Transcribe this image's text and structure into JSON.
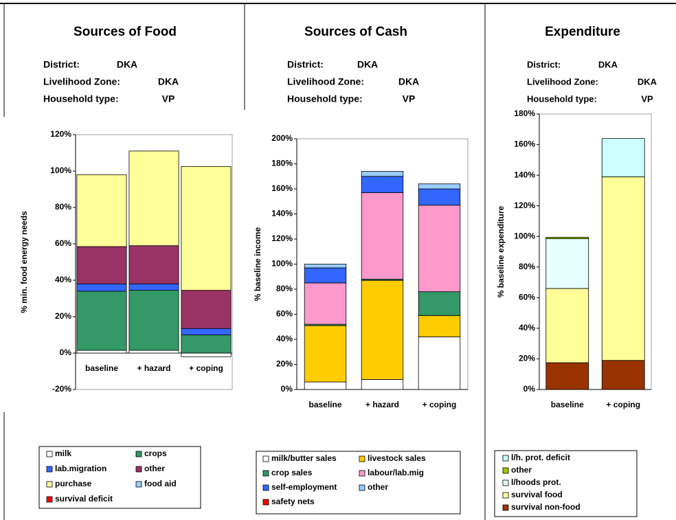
{
  "chart_data": [
    {
      "type": "bar",
      "title": "Sources of Food",
      "info": [
        {
          "label": "District:",
          "value": "DKA"
        },
        {
          "label": "Livelihood Zone:",
          "value": "DKA"
        },
        {
          "label": "Household type:",
          "value": "VP"
        }
      ],
      "y_label": "% min. food energy needs",
      "categories": [
        "baseline",
        "+ hazard",
        "+ coping"
      ],
      "ylim": [
        -20,
        120
      ],
      "yticks": [
        {
          "value": -20,
          "label": "-20%"
        },
        {
          "value": 0,
          "label": "0%"
        },
        {
          "value": 20,
          "label": "20%"
        },
        {
          "value": 40,
          "label": "40%"
        },
        {
          "value": 60,
          "label": "60%"
        },
        {
          "value": 80,
          "label": "80%"
        },
        {
          "value": 100,
          "label": "100%"
        },
        {
          "value": 120,
          "label": "120%"
        }
      ],
      "series": [
        {
          "name": "milk",
          "color": "#ffffff",
          "values": [
            1.5,
            1.5,
            -2
          ]
        },
        {
          "name": "crops",
          "color": "#339966",
          "values": [
            32.5,
            33,
            10
          ]
        },
        {
          "name": "lab.migration",
          "color": "#3366ff",
          "values": [
            4,
            3.5,
            3.5
          ]
        },
        {
          "name": "other",
          "color": "#993366",
          "values": [
            20.5,
            21,
            21
          ]
        },
        {
          "name": "purchase",
          "color": "#ffff99",
          "values": [
            39.5,
            52,
            68
          ]
        },
        {
          "name": "food aid",
          "color": "#99ccff",
          "values": [
            0,
            0,
            0
          ]
        },
        {
          "name": "survival deficit",
          "color": "#ff0000",
          "values": [
            0,
            0,
            0
          ]
        }
      ]
    },
    {
      "type": "bar",
      "title": "Sources of Cash",
      "info": [
        {
          "label": "District:",
          "value": "DKA"
        },
        {
          "label": "Livelihood Zone:",
          "value": "DKA"
        },
        {
          "label": "Household type:",
          "value": "VP"
        }
      ],
      "y_label": "% baseline income",
      "categories": [
        "baseline",
        "+ hazard",
        "+ coping"
      ],
      "ylim": [
        0,
        200
      ],
      "yticks": [
        {
          "value": 0,
          "label": "0%"
        },
        {
          "value": 20,
          "label": "20%"
        },
        {
          "value": 40,
          "label": "40%"
        },
        {
          "value": 60,
          "label": "60%"
        },
        {
          "value": 80,
          "label": "80%"
        },
        {
          "value": 100,
          "label": "100%"
        },
        {
          "value": 120,
          "label": "120%"
        },
        {
          "value": 140,
          "label": "140%"
        },
        {
          "value": 160,
          "label": "160%"
        },
        {
          "value": 180,
          "label": "180%"
        },
        {
          "value": 200,
          "label": "200%"
        }
      ],
      "series": [
        {
          "name": "milk/butter sales",
          "color": "#ffffff",
          "values": [
            6,
            8,
            42
          ]
        },
        {
          "name": "livestock sales",
          "color": "#ffcc00",
          "values": [
            45,
            79,
            17
          ]
        },
        {
          "name": "crop sales",
          "color": "#339966",
          "values": [
            1,
            1,
            19
          ]
        },
        {
          "name": "labour/lab.mig",
          "color": "#ff99cc",
          "values": [
            33,
            69,
            69
          ]
        },
        {
          "name": "self-employment",
          "color": "#3366ff",
          "values": [
            12,
            13,
            13
          ]
        },
        {
          "name": "other",
          "color": "#99ccff",
          "values": [
            3,
            4,
            4
          ]
        },
        {
          "name": "safety nets",
          "color": "#ff0000",
          "values": [
            0,
            0,
            0
          ]
        }
      ]
    },
    {
      "type": "bar",
      "title": "Expenditure",
      "info": [
        {
          "label": "District:",
          "value": "DKA"
        },
        {
          "label": "Livelihood Zone:",
          "value": "DKA"
        },
        {
          "label": "Household type:",
          "value": "VP"
        }
      ],
      "y_label": "% baseline expenditure",
      "categories": [
        "baseline",
        "+ coping"
      ],
      "ylim": [
        0,
        180
      ],
      "yticks": [
        {
          "value": 0,
          "label": "0%"
        },
        {
          "value": 20,
          "label": "20%"
        },
        {
          "value": 40,
          "label": "40%"
        },
        {
          "value": 60,
          "label": "60%"
        },
        {
          "value": 80,
          "label": "80%"
        },
        {
          "value": 100,
          "label": "100%"
        },
        {
          "value": 120,
          "label": "120%"
        },
        {
          "value": 140,
          "label": "140%"
        },
        {
          "value": 160,
          "label": "160%"
        },
        {
          "value": 180,
          "label": "180%"
        }
      ],
      "series": [
        {
          "name": "survival non-food",
          "color": "#993300",
          "values": [
            17.5,
            19
          ]
        },
        {
          "name": "survival food",
          "color": "#ffff99",
          "values": [
            48.5,
            120
          ]
        },
        {
          "name": "l/hoods prot.",
          "color": "#e6ffff",
          "values": [
            32.5,
            0
          ]
        },
        {
          "name": "other",
          "color": "#99cc00",
          "values": [
            1,
            0
          ]
        },
        {
          "name": "l/h. prot. deficit",
          "color": "#ccffff",
          "values": [
            0,
            25
          ]
        }
      ]
    }
  ]
}
